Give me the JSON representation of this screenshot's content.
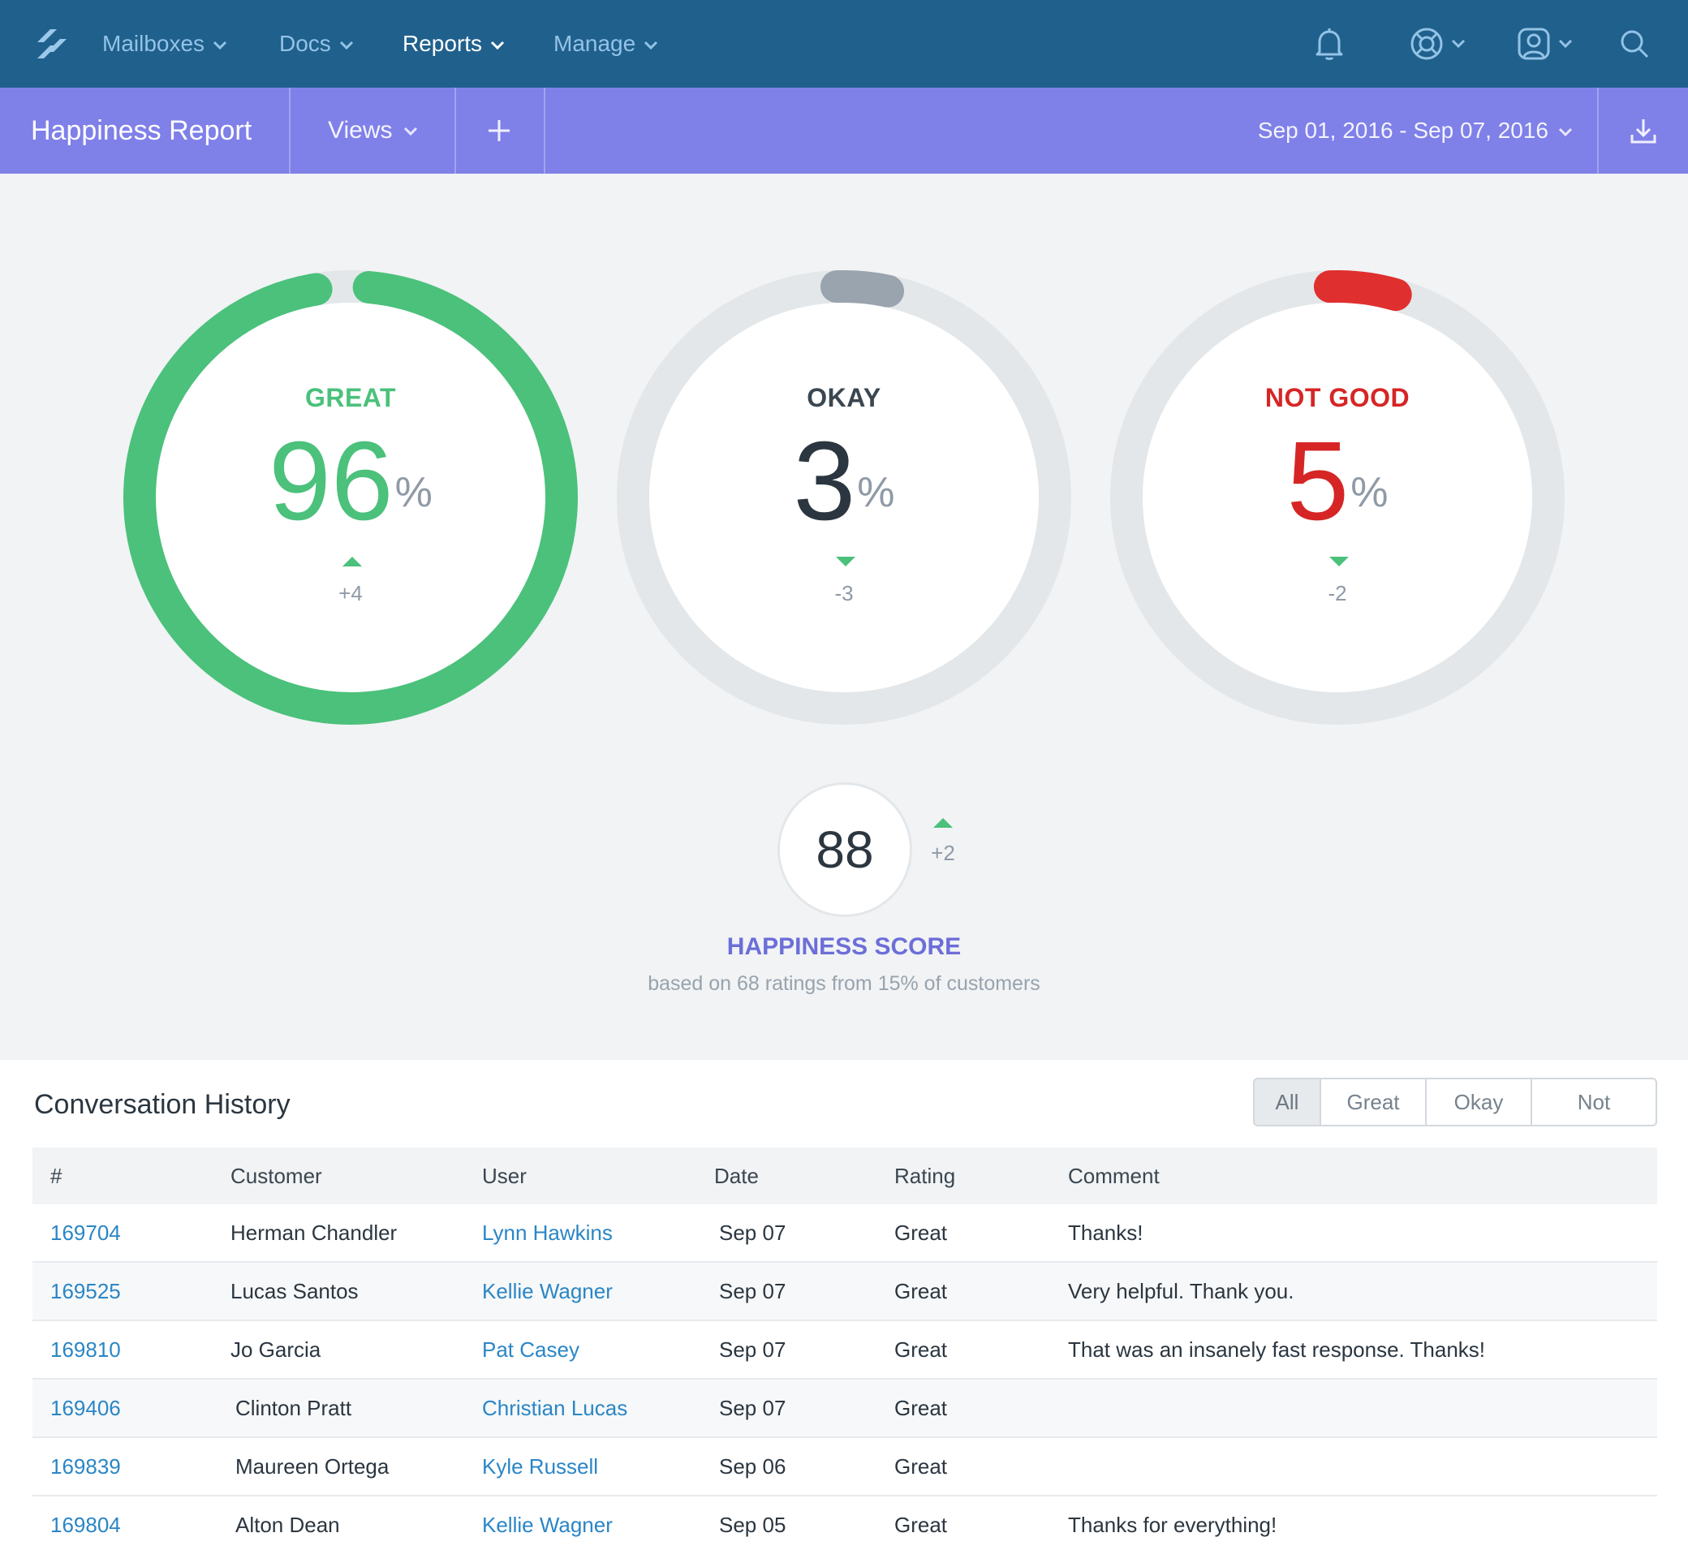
{
  "topnav": {
    "items": [
      {
        "label": "Mailboxes"
      },
      {
        "label": "Docs"
      },
      {
        "label": "Reports"
      },
      {
        "label": "Manage"
      }
    ],
    "icons": [
      "bell-icon",
      "help-icon",
      "profile-icon",
      "search-icon"
    ]
  },
  "subbar": {
    "title": "Happiness Report",
    "views_label": "Views",
    "date_range": "Sep 01, 2016 - Sep 07, 2016"
  },
  "rings": [
    {
      "label": "GREAT",
      "value": "96",
      "percent_sign": "%",
      "delta": "+4",
      "trend": "up",
      "fill_fraction": 0.96,
      "color": "#4bc17b"
    },
    {
      "label": "OKAY",
      "value": "3",
      "percent_sign": "%",
      "delta": "-3",
      "trend": "down",
      "fill_fraction": 0.03,
      "color": "#9aa4ae"
    },
    {
      "label": "NOT GOOD",
      "value": "5",
      "percent_sign": "%",
      "delta": "-2",
      "trend": "down",
      "fill_fraction": 0.05,
      "color": "#e02f2f"
    }
  ],
  "score": {
    "value": "88",
    "delta": "+2",
    "title": "HAPPINESS SCORE",
    "subtitle": "based on 68 ratings from 15% of customers"
  },
  "history": {
    "title": "Conversation History",
    "filters": [
      "All",
      "Great",
      "Okay",
      "Not Good"
    ],
    "active_filter": "All",
    "columns": [
      "#",
      "Customer",
      "User",
      "Date",
      "Rating",
      "Comment"
    ],
    "rows": [
      {
        "id": "169704",
        "customer": "Herman Chandler",
        "user": "Lynn Hawkins",
        "date": "Sep 07",
        "rating": "Great",
        "comment": "Thanks!"
      },
      {
        "id": "169525",
        "customer": "Lucas Santos",
        "user": "Kellie Wagner",
        "date": "Sep 07",
        "rating": "Great",
        "comment": "Very helpful. Thank you."
      },
      {
        "id": "169810",
        "customer": "Jo Garcia",
        "user": "Pat Casey",
        "date": "Sep 07",
        "rating": "Great",
        "comment": "That was an insanely fast response. Thanks!"
      },
      {
        "id": "169406",
        "customer": "Clinton Pratt",
        "user": "Christian Lucas",
        "date": "Sep 07",
        "rating": "Great",
        "comment": ""
      },
      {
        "id": "169839",
        "customer": "Maureen Ortega",
        "user": "Kyle Russell",
        "date": "Sep 06",
        "rating": "Great",
        "comment": ""
      },
      {
        "id": "169804",
        "customer": "Alton Dean",
        "user": "Kellie Wagner",
        "date": "Sep 05",
        "rating": "Great",
        "comment": "Thanks for everything!"
      }
    ]
  },
  "colors": {
    "topnav_bg": "#20608d",
    "subbar_bg": "#7f80e8",
    "great": "#4bc17b",
    "okay": "#9aa4ae",
    "not_good": "#e02f2f",
    "link": "#2a86c5",
    "score_title": "#6c6ed8"
  }
}
